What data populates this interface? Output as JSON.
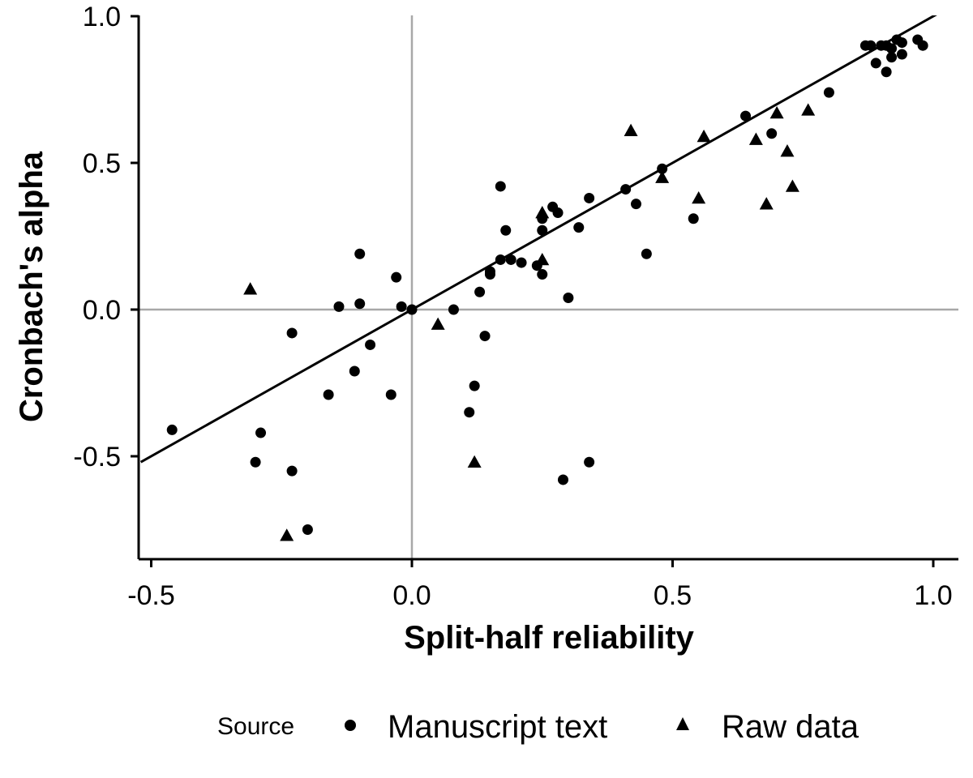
{
  "chart_data": {
    "type": "scatter",
    "title": "",
    "xlabel": "Split-half reliability",
    "ylabel": "Cronbach's alpha",
    "xlim": [
      -0.52,
      1.05
    ],
    "ylim": [
      -0.85,
      1.0
    ],
    "x_ticks": [
      -0.5,
      0.0,
      0.5,
      1.0
    ],
    "x_tick_labels": [
      "-0.5",
      "0.0",
      "0.5",
      "1.0"
    ],
    "y_ticks": [
      -0.5,
      0.0,
      0.5,
      1.0
    ],
    "y_tick_labels": [
      "-0.5",
      "0.0",
      "0.5",
      "1.0"
    ],
    "reference_lines": {
      "x": 0,
      "y": 0
    },
    "fit_line": {
      "slope": 1.0,
      "intercept": 0.0
    },
    "legend": {
      "title": "Source",
      "position": "bottom",
      "entries": [
        {
          "label": "Manuscript text",
          "marker": "circle"
        },
        {
          "label": "Raw data",
          "marker": "triangle"
        }
      ]
    },
    "series": [
      {
        "name": "Manuscript text",
        "marker": "circle",
        "points": [
          [
            -0.46,
            -0.41
          ],
          [
            -0.3,
            -0.52
          ],
          [
            -0.29,
            -0.42
          ],
          [
            -0.23,
            -0.08
          ],
          [
            -0.23,
            -0.55
          ],
          [
            -0.2,
            -0.75
          ],
          [
            -0.16,
            -0.29
          ],
          [
            -0.14,
            0.01
          ],
          [
            -0.11,
            -0.21
          ],
          [
            -0.1,
            0.19
          ],
          [
            -0.1,
            0.02
          ],
          [
            -0.08,
            -0.12
          ],
          [
            -0.04,
            -0.29
          ],
          [
            -0.03,
            0.11
          ],
          [
            -0.02,
            0.01
          ],
          [
            0.0,
            0.0
          ],
          [
            0.08,
            0.0
          ],
          [
            0.11,
            -0.35
          ],
          [
            0.12,
            -0.26
          ],
          [
            0.13,
            0.06
          ],
          [
            0.14,
            -0.09
          ],
          [
            0.15,
            0.12
          ],
          [
            0.15,
            0.13
          ],
          [
            0.17,
            0.42
          ],
          [
            0.17,
            0.17
          ],
          [
            0.18,
            0.27
          ],
          [
            0.19,
            0.17
          ],
          [
            0.21,
            0.16
          ],
          [
            0.24,
            0.15
          ],
          [
            0.25,
            0.12
          ],
          [
            0.25,
            0.27
          ],
          [
            0.25,
            0.31
          ],
          [
            0.27,
            0.35
          ],
          [
            0.28,
            0.33
          ],
          [
            0.29,
            -0.58
          ],
          [
            0.3,
            0.04
          ],
          [
            0.32,
            0.28
          ],
          [
            0.34,
            0.38
          ],
          [
            0.34,
            -0.52
          ],
          [
            0.41,
            0.41
          ],
          [
            0.43,
            0.36
          ],
          [
            0.45,
            0.19
          ],
          [
            0.48,
            0.48
          ],
          [
            0.54,
            0.31
          ],
          [
            0.64,
            0.66
          ],
          [
            0.69,
            0.6
          ],
          [
            0.8,
            0.74
          ],
          [
            0.87,
            0.9
          ],
          [
            0.88,
            0.9
          ],
          [
            0.89,
            0.84
          ],
          [
            0.9,
            0.9
          ],
          [
            0.91,
            0.81
          ],
          [
            0.91,
            0.9
          ],
          [
            0.92,
            0.86
          ],
          [
            0.92,
            0.89
          ],
          [
            0.93,
            0.92
          ],
          [
            0.94,
            0.87
          ],
          [
            0.94,
            0.91
          ],
          [
            0.97,
            0.92
          ],
          [
            0.98,
            0.9
          ]
        ]
      },
      {
        "name": "Raw data",
        "marker": "triangle",
        "points": [
          [
            -0.31,
            0.07
          ],
          [
            -0.24,
            -0.77
          ],
          [
            0.05,
            -0.05
          ],
          [
            0.12,
            -0.52
          ],
          [
            0.25,
            0.17
          ],
          [
            0.25,
            0.33
          ],
          [
            0.42,
            0.61
          ],
          [
            0.48,
            0.45
          ],
          [
            0.55,
            0.38
          ],
          [
            0.56,
            0.59
          ],
          [
            0.66,
            0.58
          ],
          [
            0.68,
            0.36
          ],
          [
            0.7,
            0.67
          ],
          [
            0.72,
            0.54
          ],
          [
            0.73,
            0.42
          ],
          [
            0.76,
            0.68
          ]
        ]
      }
    ]
  }
}
